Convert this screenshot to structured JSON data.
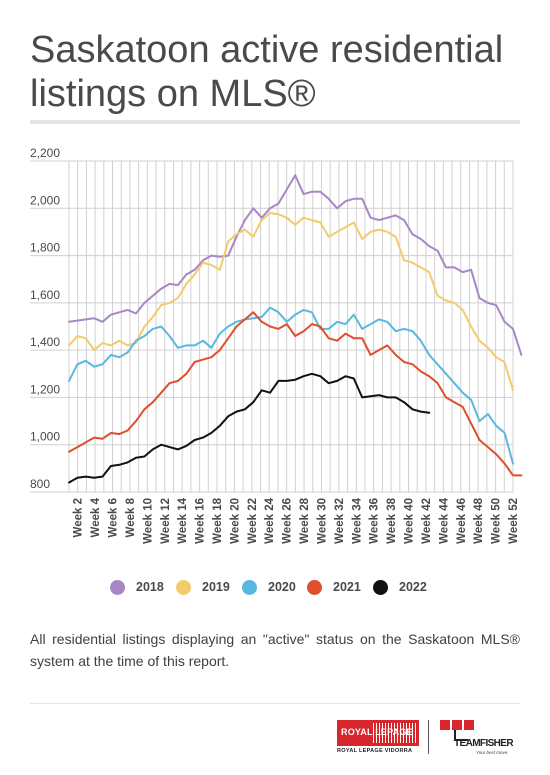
{
  "title": "Saskatoon active residential listings on MLS®",
  "note": "All residential listings displaying an \"active\" status on the Saskatoon MLS® system at the time of this report.",
  "logos": {
    "royal_lepage_name": "ROYAL LEPAGE",
    "royal_lepage_sub": "ROYAL LEPAGE VIDORRA",
    "teamfisher_name": "TEAMFISHER",
    "teamfisher_tagline": "Your best move."
  },
  "colors": {
    "2018": "#a688c6",
    "2019": "#f2cc6b",
    "2020": "#58b8e0",
    "2021": "#e04e2b",
    "2022": "#111111",
    "grid": "#d0d0d0",
    "text": "#4a4a4a"
  },
  "chart_data": {
    "type": "line",
    "title": "Saskatoon active residential listings on MLS®",
    "xlabel": "",
    "ylabel": "",
    "ylim": [
      800,
      2200
    ],
    "yticks": [
      800,
      1000,
      1200,
      1400,
      1600,
      1800,
      2000,
      2200
    ],
    "ytick_labels": [
      "800",
      "1,000",
      "1,200",
      "1,400",
      "1,600",
      "1,800",
      "2,000",
      "2,200"
    ],
    "x_tick_labels": [
      "Week 2",
      "Week 4",
      "Week 6",
      "Week 8",
      "Week 10",
      "Week 12",
      "Week 14",
      "Week 16",
      "Week 18",
      "Week 20",
      "Week 22",
      "Week 24",
      "Week 26",
      "Week 28",
      "Week 30",
      "Week 32",
      "Week 34",
      "Week 36",
      "Week 38",
      "Week 40",
      "Week 42",
      "Week 44",
      "Week 46",
      "Week 48",
      "Week 50",
      "Week 52"
    ],
    "x_start_week": 1,
    "x_end_week": 52,
    "grid": true,
    "legend_position": "bottom",
    "series": [
      {
        "name": "2018",
        "values": [
          1520,
          1525,
          1530,
          1535,
          1520,
          1550,
          1560,
          1570,
          1555,
          1600,
          1630,
          1660,
          1680,
          1675,
          1720,
          1740,
          1780,
          1800,
          1795,
          1800,
          1880,
          1950,
          2000,
          1960,
          2000,
          2020,
          2080,
          2140,
          2060,
          2070,
          2070,
          2040,
          2000,
          2030,
          2040,
          2040,
          1960,
          1950,
          1960,
          1970,
          1950,
          1890,
          1870,
          1840,
          1820,
          1750,
          1750,
          1730,
          1740,
          1620,
          1600,
          1590,
          1520,
          1490,
          1380
        ]
      },
      {
        "name": "2019",
        "values": [
          1420,
          1460,
          1450,
          1400,
          1430,
          1420,
          1440,
          1420,
          1430,
          1500,
          1540,
          1590,
          1600,
          1620,
          1680,
          1720,
          1770,
          1760,
          1740,
          1860,
          1890,
          1910,
          1880,
          1950,
          1980,
          1975,
          1960,
          1930,
          1960,
          1950,
          1940,
          1880,
          1900,
          1920,
          1940,
          1870,
          1900,
          1910,
          1900,
          1880,
          1780,
          1770,
          1750,
          1730,
          1630,
          1610,
          1600,
          1570,
          1500,
          1440,
          1410,
          1370,
          1350,
          1230
        ]
      },
      {
        "name": "2020",
        "values": [
          1270,
          1340,
          1355,
          1330,
          1340,
          1380,
          1370,
          1390,
          1440,
          1460,
          1490,
          1500,
          1460,
          1410,
          1420,
          1420,
          1440,
          1410,
          1470,
          1500,
          1520,
          1530,
          1535,
          1540,
          1580,
          1560,
          1520,
          1550,
          1570,
          1560,
          1490,
          1490,
          1520,
          1510,
          1550,
          1490,
          1510,
          1530,
          1520,
          1480,
          1490,
          1480,
          1440,
          1380,
          1340,
          1300,
          1260,
          1220,
          1190,
          1100,
          1130,
          1080,
          1050,
          920
        ]
      },
      {
        "name": "2021",
        "values": [
          970,
          990,
          1010,
          1030,
          1025,
          1050,
          1045,
          1060,
          1100,
          1150,
          1180,
          1220,
          1260,
          1270,
          1300,
          1350,
          1360,
          1370,
          1400,
          1450,
          1500,
          1530,
          1560,
          1520,
          1500,
          1490,
          1510,
          1460,
          1480,
          1510,
          1500,
          1450,
          1440,
          1470,
          1450,
          1450,
          1380,
          1400,
          1420,
          1380,
          1350,
          1340,
          1310,
          1290,
          1260,
          1200,
          1180,
          1160,
          1090,
          1020,
          990,
          960,
          920,
          870,
          870
        ]
      },
      {
        "name": "2022",
        "values": [
          840,
          860,
          865,
          860,
          865,
          910,
          915,
          925,
          945,
          950,
          980,
          1000,
          990,
          980,
          995,
          1020,
          1030,
          1050,
          1080,
          1120,
          1140,
          1150,
          1180,
          1230,
          1220,
          1270,
          1270,
          1275,
          1290,
          1300,
          1290,
          1260,
          1270,
          1290,
          1280,
          1200,
          1205,
          1210,
          1200,
          1200,
          1180,
          1150,
          1140,
          1135
        ]
      }
    ]
  }
}
